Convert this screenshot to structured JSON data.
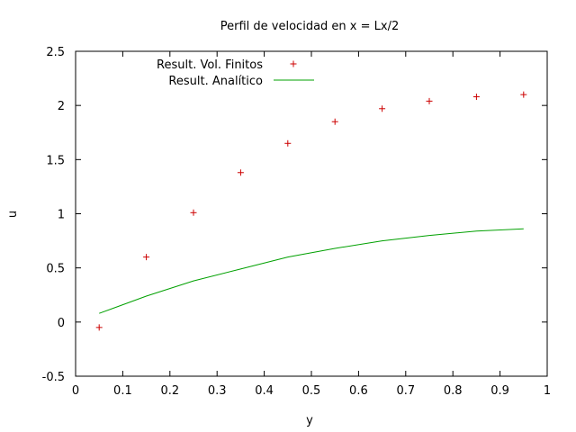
{
  "chart_data": {
    "type": "line",
    "title": "Perfil de velocidad en x = Lx/2",
    "xlabel": "y",
    "ylabel": "u",
    "xlim": [
      0,
      1
    ],
    "ylim": [
      -0.5,
      2.5
    ],
    "x_ticks": [
      0,
      0.1,
      0.2,
      0.3,
      0.4,
      0.5,
      0.6,
      0.7,
      0.8,
      0.9,
      1
    ],
    "x_tick_labels": [
      "0",
      "0.1",
      "0.2",
      "0.3",
      "0.4",
      "0.5",
      "0.6",
      "0.7",
      "0.8",
      "0.9",
      "1"
    ],
    "y_ticks": [
      -0.5,
      0,
      0.5,
      1,
      1.5,
      2,
      2.5
    ],
    "y_tick_labels": [
      "-0.5",
      "0",
      "0.5",
      "1",
      "1.5",
      "2",
      "2.5"
    ],
    "grid": false,
    "legend_position": "top-left",
    "series": [
      {
        "name": "Result. Vol. Finitos",
        "style": "points",
        "marker": "+",
        "color": "#cc0000",
        "x": [
          0.05,
          0.15,
          0.25,
          0.35,
          0.45,
          0.55,
          0.65,
          0.75,
          0.85,
          0.95
        ],
        "y": [
          -0.05,
          0.6,
          1.01,
          1.38,
          1.65,
          1.85,
          1.97,
          2.04,
          2.08,
          2.1
        ]
      },
      {
        "name": "Result. Analítico",
        "style": "line",
        "color": "#00a000",
        "x": [
          0.05,
          0.15,
          0.25,
          0.35,
          0.45,
          0.55,
          0.65,
          0.75,
          0.85,
          0.95
        ],
        "y": [
          0.08,
          0.24,
          0.38,
          0.49,
          0.6,
          0.68,
          0.75,
          0.8,
          0.84,
          0.86
        ]
      }
    ]
  }
}
